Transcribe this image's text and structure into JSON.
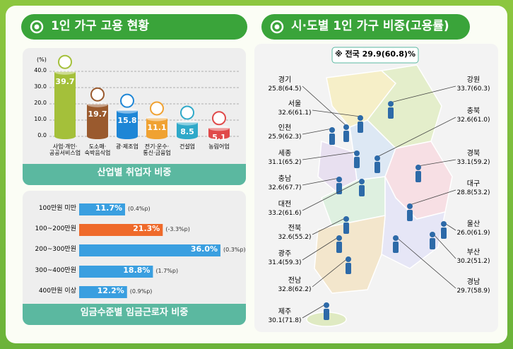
{
  "header": {
    "left_title": "1인 가구 고용 현황",
    "right_title": "시·도별 1인 가구 비중(고용률)"
  },
  "chart_data": [
    {
      "type": "bar",
      "caption": "산업별 취업자 비중",
      "y_unit": "(%)",
      "categories": [
        "사업·개인·\n공공서비스업",
        "도소매·\n숙박음식업",
        "광·제조업",
        "전기·운수·\n통신·금융업",
        "건설업",
        "농림어업"
      ],
      "values": [
        39.7,
        19.7,
        15.8,
        11.1,
        8.5,
        5.1
      ],
      "colors": [
        "#a4c03a",
        "#9a5a2e",
        "#1e86d6",
        "#f0a232",
        "#2fa9c9",
        "#e04a4a"
      ],
      "ylim": [
        0,
        40
      ],
      "yticks": [
        {
          "value": 0,
          "label": "0.0"
        },
        {
          "value": 10,
          "label": "10.0"
        },
        {
          "value": 20,
          "label": "20.0"
        },
        {
          "value": 30,
          "label": "30.0"
        },
        {
          "value": 40,
          "label": "40.0"
        }
      ],
      "grid": true
    },
    {
      "type": "hbar",
      "caption": "임금수준별 임금근로자 비중",
      "categories": [
        "100만원 미만",
        "100~200만원",
        "200~300만원",
        "300~400만원",
        "400만원 이상"
      ],
      "values": [
        11.7,
        21.3,
        36.0,
        18.8,
        12.2
      ],
      "value_labels": [
        "11.7%",
        "21.3%",
        "36.0%",
        "18.8%",
        "12.2%"
      ],
      "changes": [
        0.4,
        -3.3,
        0.3,
        1.7,
        0.9
      ],
      "change_labels": [
        "(0.4%p)",
        "(-3.3%p)",
        "(0.3%p)",
        "(1.7%p)",
        "(0.9%p)"
      ],
      "colors": [
        "#3a9fe0",
        "#ef6a2a",
        "#3a9fe0",
        "#3a9fe0",
        "#3a9fe0"
      ]
    }
  ],
  "map": {
    "national": "※ 전국 29.9(60.8)%",
    "regions": [
      {
        "name": "경기",
        "label": "25.8(64.5)"
      },
      {
        "name": "서울",
        "label": "32.6(61.1)"
      },
      {
        "name": "인천",
        "label": "25.9(62.3)"
      },
      {
        "name": "세종",
        "label": "31.1(65.2)"
      },
      {
        "name": "충남",
        "label": "32.6(67.7)"
      },
      {
        "name": "대전",
        "label": "33.2(61.6)"
      },
      {
        "name": "전북",
        "label": "32.6(55.2)"
      },
      {
        "name": "광주",
        "label": "31.4(59.3)"
      },
      {
        "name": "전남",
        "label": "32.8(62.2)"
      },
      {
        "name": "제주",
        "label": "30.1(71.8)"
      },
      {
        "name": "강원",
        "label": "33.7(60.3)"
      },
      {
        "name": "충북",
        "label": "32.6(61.0)"
      },
      {
        "name": "경북",
        "label": "33.1(59.2)"
      },
      {
        "name": "대구",
        "label": "28.8(53.2)"
      },
      {
        "name": "울산",
        "label": "26.0(61.9)"
      },
      {
        "name": "부산",
        "label": "30.2(51.2)"
      },
      {
        "name": "경남",
        "label": "29.7(58.9)"
      }
    ]
  }
}
